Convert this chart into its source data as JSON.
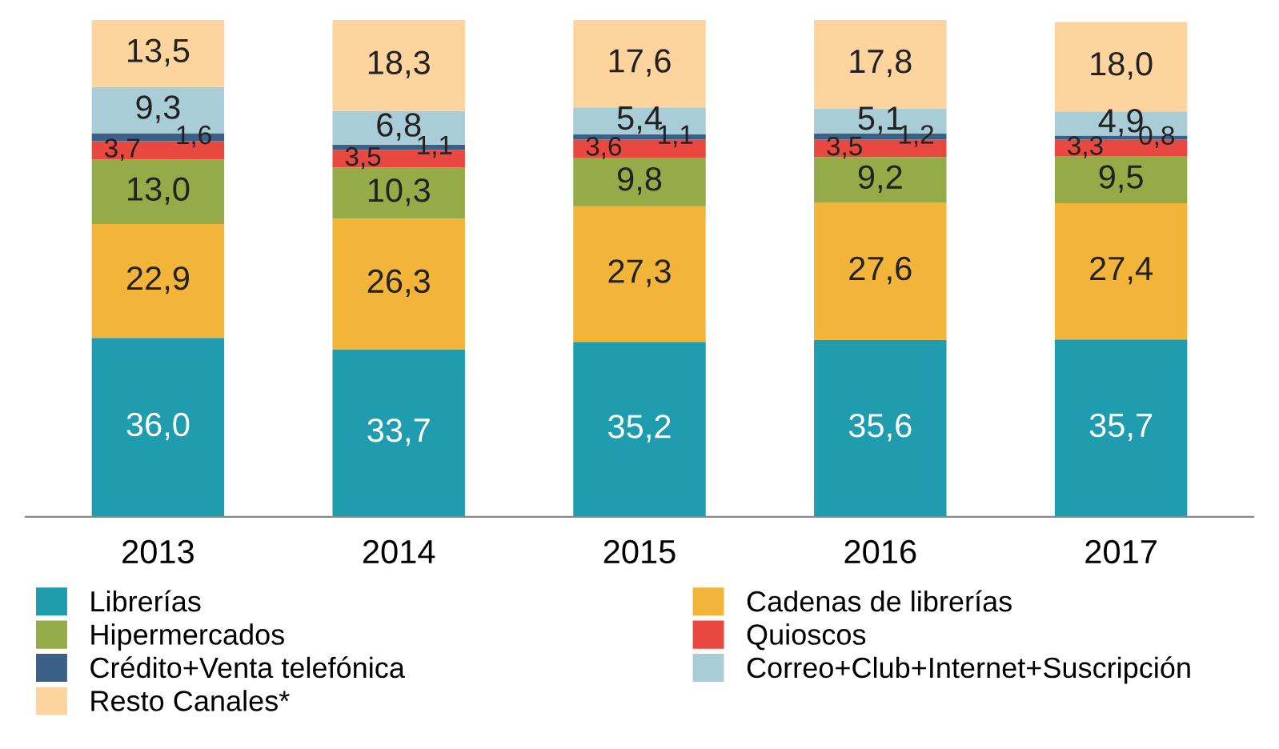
{
  "chart_data": {
    "type": "bar",
    "stacked": true,
    "categories": [
      "2013",
      "2014",
      "2015",
      "2016",
      "2017"
    ],
    "series": [
      {
        "name": "Librerías",
        "color": "#1f9dae",
        "values": [
          36.0,
          33.7,
          35.2,
          35.6,
          35.7
        ],
        "value_labels": [
          "36,0",
          "33,7",
          "35,2",
          "35,6",
          "35,7"
        ]
      },
      {
        "name": "Cadenas de librerías",
        "color": "#f2b53a",
        "values": [
          22.9,
          26.3,
          27.3,
          27.6,
          27.4
        ],
        "value_labels": [
          "22,9",
          "26,3",
          "27,3",
          "27,6",
          "27,4"
        ]
      },
      {
        "name": "Hipermercados",
        "color": "#94ab47",
        "values": [
          13.0,
          10.3,
          9.8,
          9.2,
          9.5
        ],
        "value_labels": [
          "13,0",
          "10,3",
          "9,8",
          "9,2",
          "9,5"
        ]
      },
      {
        "name": "Quioscos",
        "color": "#e8483f",
        "values": [
          3.7,
          3.5,
          3.6,
          3.5,
          3.3
        ],
        "value_labels": [
          "3,7",
          "3,5",
          "3,6",
          "3,5",
          "3,3"
        ]
      },
      {
        "name": "Crédito+Venta telefónica",
        "color": "#3b6088",
        "values": [
          1.6,
          1.1,
          1.1,
          1.2,
          0.8
        ],
        "value_labels": [
          "1,6",
          "1,1",
          "1,1",
          "1,2",
          "0,8"
        ]
      },
      {
        "name": "Correo+Club+Internet+Suscripción",
        "color": "#a8cdd6",
        "values": [
          9.3,
          6.8,
          5.4,
          5.1,
          4.9
        ],
        "value_labels": [
          "9,3",
          "6,8",
          "5,4",
          "5,1",
          "4,9"
        ]
      },
      {
        "name": "Resto Canales*",
        "color": "#fdd49e",
        "values": [
          13.5,
          18.3,
          17.6,
          17.8,
          18.0
        ],
        "value_labels": [
          "13,5",
          "18,3",
          "17,6",
          "17,8",
          "18,0"
        ]
      }
    ],
    "legend": "bottom"
  }
}
